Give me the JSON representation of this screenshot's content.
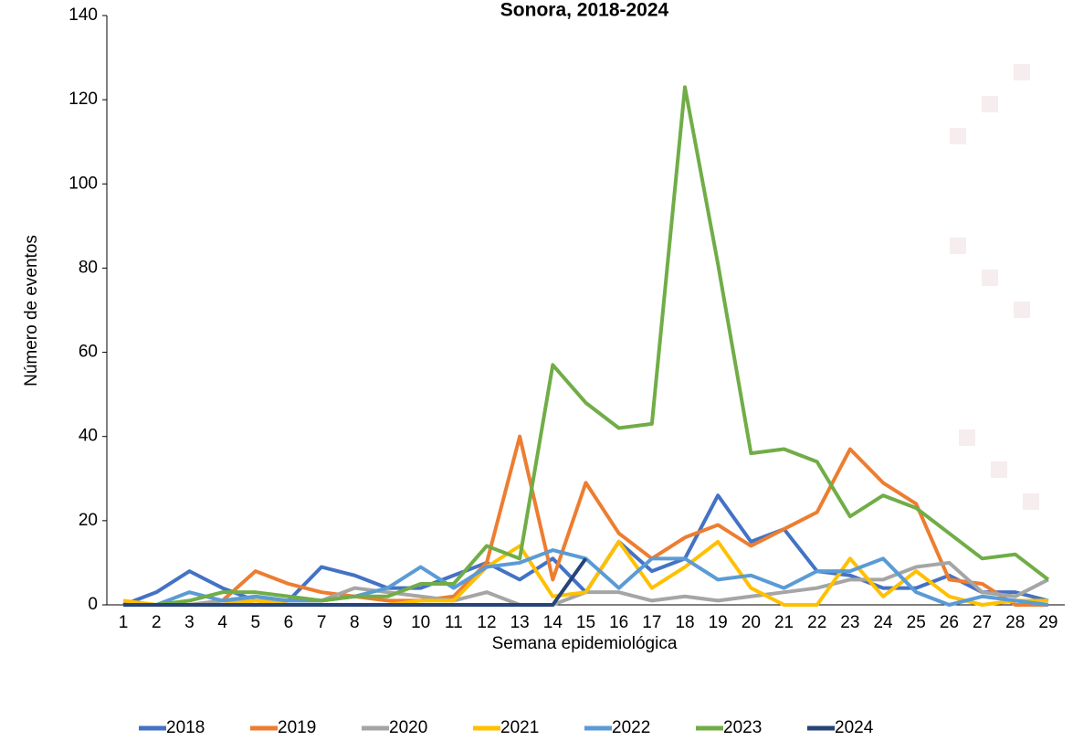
{
  "chart_data": {
    "type": "line",
    "title": "Sonora, 2018-2024",
    "x_label": "Semana epidemiológica",
    "y_label": "Número de eventos",
    "categories": [
      1,
      2,
      3,
      4,
      5,
      6,
      7,
      8,
      9,
      10,
      11,
      12,
      13,
      14,
      15,
      16,
      17,
      18,
      19,
      20,
      21,
      22,
      23,
      24,
      25,
      26,
      27,
      28,
      29
    ],
    "ylim": [
      0,
      140
    ],
    "yticks": [
      0,
      20,
      40,
      60,
      80,
      100,
      120,
      140
    ],
    "grid": false,
    "legend": "bottom",
    "series": [
      {
        "name": "2018",
        "color": "#4472c4",
        "values": [
          0,
          3,
          8,
          4,
          1,
          1,
          9,
          7,
          4,
          4,
          7,
          10,
          6,
          11,
          3,
          15,
          8,
          11,
          26,
          15,
          18,
          8,
          7,
          4,
          4,
          7,
          3,
          3,
          1
        ]
      },
      {
        "name": "2019",
        "color": "#ed7d31",
        "values": [
          0,
          0,
          0,
          1,
          8,
          5,
          3,
          2,
          1,
          1,
          2,
          10,
          40,
          6,
          29,
          17,
          11,
          16,
          19,
          14,
          18,
          22,
          37,
          29,
          24,
          6,
          5,
          0,
          0
        ]
      },
      {
        "name": "2020",
        "color": "#a5a5a5",
        "values": [
          0,
          0,
          0,
          1,
          1,
          1,
          1,
          4,
          3,
          2,
          1,
          3,
          0,
          0,
          3,
          3,
          1,
          2,
          1,
          2,
          3,
          4,
          6,
          6,
          9,
          10,
          3,
          2,
          6
        ]
      },
      {
        "name": "2021",
        "color": "#ffc000",
        "values": [
          1,
          0,
          0,
          0,
          1,
          0,
          0,
          0,
          0,
          1,
          1,
          9,
          14,
          2,
          3,
          15,
          4,
          9,
          15,
          4,
          0,
          0,
          11,
          2,
          8,
          2,
          0,
          1,
          1
        ]
      },
      {
        "name": "2022",
        "color": "#5b9bd5",
        "values": [
          0,
          0,
          3,
          1,
          2,
          1,
          1,
          2,
          4,
          9,
          4,
          9,
          10,
          13,
          11,
          4,
          11,
          11,
          6,
          7,
          4,
          8,
          8,
          11,
          3,
          0,
          2,
          1,
          0
        ]
      },
      {
        "name": "2023",
        "color": "#70ad47",
        "values": [
          0,
          0,
          1,
          3,
          3,
          2,
          1,
          2,
          2,
          5,
          5,
          14,
          11,
          57,
          48,
          42,
          43,
          123,
          81,
          36,
          37,
          34,
          21,
          26,
          23,
          17,
          11,
          12,
          6
        ]
      },
      {
        "name": "2024",
        "color": "#264478",
        "values": [
          0,
          0,
          0,
          0,
          0,
          0,
          0,
          0,
          0,
          0,
          0,
          0,
          0,
          0,
          11,
          null,
          null,
          null,
          null,
          null,
          null,
          null,
          null,
          null,
          null,
          null,
          null,
          null,
          null
        ]
      }
    ]
  }
}
